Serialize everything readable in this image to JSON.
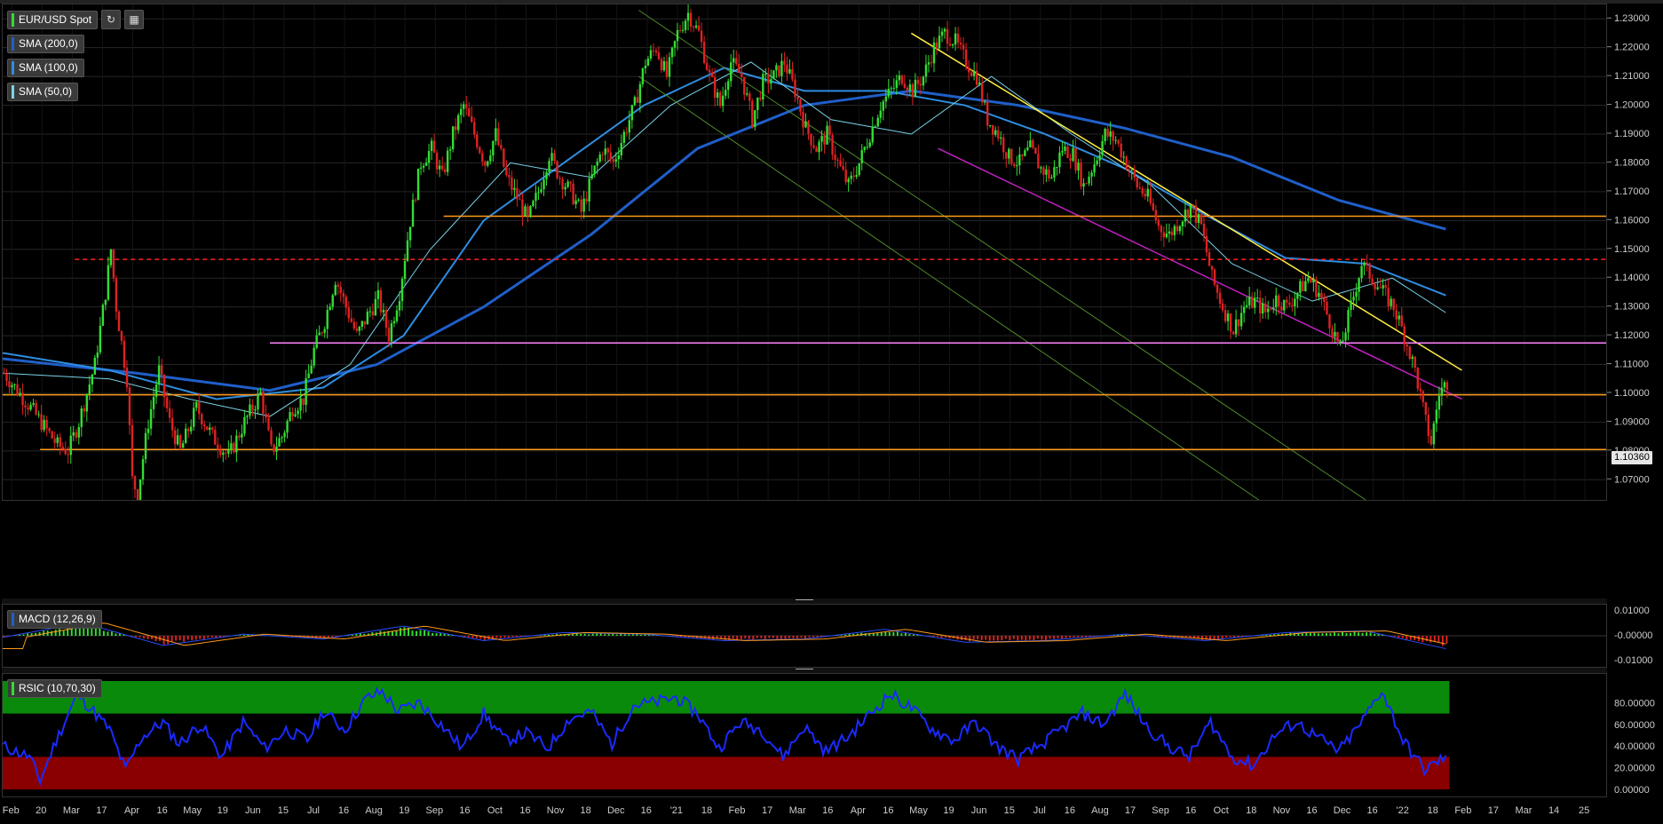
{
  "legend": {
    "symbol": "EUR/USD Spot",
    "sma200": "SMA (200,0)",
    "sma100": "SMA (100,0)",
    "sma50": "SMA (50,0)",
    "macd": "MACD (12,26,9)",
    "rsi": "RSIC (10,70,30)"
  },
  "colors": {
    "up": "#33dd33",
    "down": "#dd2222",
    "sma200": "#1f5fc9",
    "sma100": "#2e8de0",
    "sma50": "#79d3e8",
    "support_orange": "#ff9a1a",
    "resistance_red": "#ff2020",
    "support_magenta_h": "#ff80ff",
    "trend_yellow": "#ffee44",
    "trend_magenta": "#c020c0",
    "channel_green": "#4f8a2a",
    "rsi": "#1a2aff",
    "overbought_zone": "#0a8a0a",
    "oversold_zone": "#8a0000"
  },
  "current_price": "1.10360",
  "chart_data": [
    {
      "type": "candlestick",
      "name": "EUR/USD Spot",
      "y_ticks": [
        "1.23000",
        "1.22000",
        "1.21000",
        "1.20000",
        "1.19000",
        "1.18000",
        "1.17000",
        "1.16000",
        "1.15000",
        "1.14000",
        "1.13000",
        "1.12000",
        "1.11000",
        "1.10000",
        "1.09000",
        "1.08000",
        "1.07000"
      ],
      "ylim": [
        1.063,
        1.235
      ],
      "x_ticks": [
        "Feb",
        "20",
        "Mar",
        "17",
        "Apr",
        "16",
        "May",
        "19",
        "Jun",
        "15",
        "Jul",
        "16",
        "Aug",
        "19",
        "Sep",
        "16",
        "Oct",
        "16",
        "Nov",
        "18",
        "Dec",
        "16",
        "'21",
        "18",
        "Feb",
        "17",
        "Mar",
        "16",
        "Apr",
        "16",
        "May",
        "19",
        "Jun",
        "15",
        "Jul",
        "16",
        "Aug",
        "17",
        "Sep",
        "16",
        "Oct",
        "18",
        "Nov",
        "16",
        "Dec",
        "16",
        "'22",
        "18",
        "Feb",
        "17",
        "Mar",
        "14",
        "25"
      ],
      "close_path": [
        [
          0,
          1.107
        ],
        [
          10,
          1.095
        ],
        [
          20,
          1.082
        ],
        [
          24,
          1.08
        ],
        [
          28,
          1.09
        ],
        [
          34,
          1.11
        ],
        [
          38,
          1.135
        ],
        [
          40,
          1.15
        ],
        [
          42,
          1.13
        ],
        [
          46,
          1.105
        ],
        [
          48,
          1.07
        ],
        [
          50,
          1.065
        ],
        [
          54,
          1.09
        ],
        [
          58,
          1.108
        ],
        [
          62,
          1.09
        ],
        [
          66,
          1.08
        ],
        [
          72,
          1.095
        ],
        [
          78,
          1.085
        ],
        [
          84,
          1.078
        ],
        [
          90,
          1.09
        ],
        [
          96,
          1.1
        ],
        [
          100,
          1.08
        ],
        [
          104,
          1.085
        ],
        [
          108,
          1.095
        ],
        [
          112,
          1.098
        ],
        [
          116,
          1.115
        ],
        [
          120,
          1.125
        ],
        [
          124,
          1.14
        ],
        [
          128,
          1.13
        ],
        [
          132,
          1.12
        ],
        [
          136,
          1.127
        ],
        [
          140,
          1.133
        ],
        [
          144,
          1.12
        ],
        [
          148,
          1.135
        ],
        [
          152,
          1.16
        ],
        [
          156,
          1.18
        ],
        [
          160,
          1.185
        ],
        [
          164,
          1.175
        ],
        [
          168,
          1.19
        ],
        [
          172,
          1.2
        ],
        [
          176,
          1.19
        ],
        [
          180,
          1.18
        ],
        [
          184,
          1.19
        ],
        [
          188,
          1.175
        ],
        [
          192,
          1.168
        ],
        [
          196,
          1.16
        ],
        [
          200,
          1.17
        ],
        [
          204,
          1.183
        ],
        [
          208,
          1.175
        ],
        [
          212,
          1.17
        ],
        [
          216,
          1.163
        ],
        [
          220,
          1.175
        ],
        [
          224,
          1.185
        ],
        [
          228,
          1.18
        ],
        [
          232,
          1.19
        ],
        [
          236,
          1.2
        ],
        [
          240,
          1.215
        ],
        [
          244,
          1.22
        ],
        [
          248,
          1.21
        ],
        [
          252,
          1.225
        ],
        [
          256,
          1.232
        ],
        [
          260,
          1.225
        ],
        [
          264,
          1.21
        ],
        [
          268,
          1.2
        ],
        [
          272,
          1.215
        ],
        [
          276,
          1.21
        ],
        [
          280,
          1.195
        ],
        [
          284,
          1.208
        ],
        [
          288,
          1.21
        ],
        [
          292,
          1.215
        ],
        [
          296,
          1.205
        ],
        [
          300,
          1.192
        ],
        [
          304,
          1.185
        ],
        [
          308,
          1.19
        ],
        [
          312,
          1.18
        ],
        [
          316,
          1.172
        ],
        [
          320,
          1.18
        ],
        [
          324,
          1.19
        ],
        [
          328,
          1.2
        ],
        [
          332,
          1.205
        ],
        [
          336,
          1.21
        ],
        [
          340,
          1.205
        ],
        [
          344,
          1.21
        ],
        [
          348,
          1.22
        ],
        [
          352,
          1.225
        ],
        [
          356,
          1.222
        ],
        [
          360,
          1.215
        ],
        [
          364,
          1.21
        ],
        [
          368,
          1.195
        ],
        [
          372,
          1.19
        ],
        [
          376,
          1.182
        ],
        [
          380,
          1.18
        ],
        [
          384,
          1.185
        ],
        [
          388,
          1.178
        ],
        [
          392,
          1.175
        ],
        [
          396,
          1.185
        ],
        [
          400,
          1.183
        ],
        [
          404,
          1.172
        ],
        [
          408,
          1.18
        ],
        [
          412,
          1.19
        ],
        [
          416,
          1.188
        ],
        [
          420,
          1.18
        ],
        [
          424,
          1.172
        ],
        [
          428,
          1.168
        ],
        [
          432,
          1.158
        ],
        [
          436,
          1.155
        ],
        [
          440,
          1.16
        ],
        [
          444,
          1.165
        ],
        [
          448,
          1.158
        ],
        [
          452,
          1.14
        ],
        [
          456,
          1.13
        ],
        [
          460,
          1.122
        ],
        [
          464,
          1.13
        ],
        [
          468,
          1.132
        ],
        [
          472,
          1.128
        ],
        [
          476,
          1.133
        ],
        [
          480,
          1.13
        ],
        [
          484,
          1.135
        ],
        [
          488,
          1.14
        ],
        [
          492,
          1.135
        ],
        [
          496,
          1.125
        ],
        [
          500,
          1.115
        ],
        [
          504,
          1.13
        ],
        [
          508,
          1.145
        ],
        [
          512,
          1.14
        ],
        [
          516,
          1.135
        ],
        [
          520,
          1.13
        ],
        [
          524,
          1.12
        ],
        [
          528,
          1.108
        ],
        [
          532,
          1.09
        ],
        [
          534,
          1.083
        ],
        [
          537,
          1.1
        ],
        [
          540,
          1.104
        ]
      ],
      "x_domain": [
        0,
        600
      ],
      "sma50": [
        [
          0,
          1.107
        ],
        [
          40,
          1.105
        ],
        [
          70,
          1.098
        ],
        [
          100,
          1.092
        ],
        [
          130,
          1.11
        ],
        [
          160,
          1.15
        ],
        [
          190,
          1.18
        ],
        [
          220,
          1.175
        ],
        [
          250,
          1.2
        ],
        [
          280,
          1.215
        ],
        [
          310,
          1.195
        ],
        [
          340,
          1.19
        ],
        [
          370,
          1.21
        ],
        [
          400,
          1.19
        ],
        [
          430,
          1.172
        ],
        [
          460,
          1.145
        ],
        [
          490,
          1.132
        ],
        [
          520,
          1.14
        ],
        [
          540,
          1.128
        ]
      ],
      "sma100": [
        [
          0,
          1.114
        ],
        [
          40,
          1.108
        ],
        [
          80,
          1.098
        ],
        [
          120,
          1.102
        ],
        [
          150,
          1.12
        ],
        [
          180,
          1.16
        ],
        [
          210,
          1.18
        ],
        [
          240,
          1.2
        ],
        [
          270,
          1.213
        ],
        [
          300,
          1.205
        ],
        [
          330,
          1.205
        ],
        [
          360,
          1.2
        ],
        [
          390,
          1.19
        ],
        [
          420,
          1.178
        ],
        [
          450,
          1.162
        ],
        [
          480,
          1.147
        ],
        [
          510,
          1.145
        ],
        [
          540,
          1.134
        ]
      ],
      "sma200": [
        [
          0,
          1.112
        ],
        [
          50,
          1.107
        ],
        [
          100,
          1.101
        ],
        [
          140,
          1.11
        ],
        [
          180,
          1.13
        ],
        [
          220,
          1.155
        ],
        [
          260,
          1.185
        ],
        [
          300,
          1.2
        ],
        [
          340,
          1.205
        ],
        [
          380,
          1.2
        ],
        [
          420,
          1.192
        ],
        [
          460,
          1.182
        ],
        [
          500,
          1.167
        ],
        [
          540,
          1.157
        ]
      ],
      "horizontal_levels": [
        {
          "value": 1.1615,
          "from": 165,
          "color": "support_orange"
        },
        {
          "value": 1.1465,
          "from": 27,
          "color": "resistance_red",
          "dashed": true
        },
        {
          "value": 1.1175,
          "from": 100,
          "color": "support_magenta_h"
        },
        {
          "value": 1.0995,
          "from": 0,
          "color": "support_orange"
        },
        {
          "value": 1.0805,
          "from": 14,
          "color": "support_orange"
        }
      ],
      "trend_lines": [
        {
          "from": [
            340,
            1.225
          ],
          "to": [
            546,
            1.108
          ],
          "color": "trend_yellow"
        },
        {
          "from": [
            350,
            1.185
          ],
          "to": [
            546,
            1.098
          ],
          "color": "trend_magenta"
        },
        {
          "from": [
            238,
            1.233
          ],
          "to": [
            510,
            1.063
          ],
          "color": "channel_green"
        },
        {
          "from": [
            238,
            1.21
          ],
          "to": [
            470,
            1.063
          ],
          "color": "channel_green"
        }
      ]
    },
    {
      "type": "bar",
      "name": "MACD (12,26,9)",
      "y_ticks": [
        "0.01000",
        "-0.00000",
        "-0.01000"
      ],
      "ylim": [
        -0.0125,
        0.0125
      ],
      "histogram": [
        [
          0,
          -0.0005
        ],
        [
          30,
          0.004
        ],
        [
          60,
          -0.003
        ],
        [
          90,
          0.0005
        ],
        [
          120,
          -0.001
        ],
        [
          150,
          0.003
        ],
        [
          180,
          -0.0015
        ],
        [
          210,
          0.001
        ],
        [
          240,
          0.0005
        ],
        [
          270,
          -0.0015
        ],
        [
          300,
          -0.001
        ],
        [
          330,
          0.002
        ],
        [
          360,
          -0.002
        ],
        [
          390,
          -0.0015
        ],
        [
          420,
          0.0005
        ],
        [
          450,
          -0.0015
        ],
        [
          480,
          0.001
        ],
        [
          510,
          0.0015
        ],
        [
          540,
          -0.004
        ]
      ]
    },
    {
      "type": "line",
      "name": "RSIC (10,70,30)",
      "y_ticks": [
        "80.00000",
        "60.00000",
        "40.00000",
        "20.00000",
        "0.00000"
      ],
      "ylim": [
        0,
        100
      ],
      "overbought": 70,
      "oversold": 30,
      "values": [
        [
          0,
          40
        ],
        [
          10,
          30
        ],
        [
          14,
          8
        ],
        [
          20,
          45
        ],
        [
          28,
          88
        ],
        [
          34,
          72
        ],
        [
          40,
          55
        ],
        [
          46,
          18
        ],
        [
          52,
          48
        ],
        [
          60,
          62
        ],
        [
          66,
          42
        ],
        [
          74,
          60
        ],
        [
          82,
          30
        ],
        [
          90,
          62
        ],
        [
          98,
          38
        ],
        [
          106,
          55
        ],
        [
          114,
          45
        ],
        [
          120,
          72
        ],
        [
          128,
          55
        ],
        [
          136,
          84
        ],
        [
          142,
          90
        ],
        [
          148,
          72
        ],
        [
          156,
          80
        ],
        [
          164,
          60
        ],
        [
          172,
          38
        ],
        [
          180,
          70
        ],
        [
          188,
          45
        ],
        [
          196,
          52
        ],
        [
          204,
          38
        ],
        [
          212,
          65
        ],
        [
          220,
          72
        ],
        [
          228,
          42
        ],
        [
          236,
          78
        ],
        [
          244,
          80
        ],
        [
          252,
          85
        ],
        [
          260,
          70
        ],
        [
          268,
          38
        ],
        [
          276,
          62
        ],
        [
          284,
          55
        ],
        [
          292,
          30
        ],
        [
          300,
          58
        ],
        [
          308,
          35
        ],
        [
          316,
          48
        ],
        [
          324,
          68
        ],
        [
          332,
          88
        ],
        [
          340,
          75
        ],
        [
          348,
          55
        ],
        [
          356,
          45
        ],
        [
          364,
          62
        ],
        [
          372,
          40
        ],
        [
          380,
          28
        ],
        [
          388,
          40
        ],
        [
          396,
          55
        ],
        [
          404,
          70
        ],
        [
          412,
          60
        ],
        [
          420,
          88
        ],
        [
          428,
          58
        ],
        [
          436,
          40
        ],
        [
          444,
          30
        ],
        [
          452,
          62
        ],
        [
          460,
          30
        ],
        [
          468,
          22
        ],
        [
          476,
          50
        ],
        [
          484,
          62
        ],
        [
          492,
          48
        ],
        [
          500,
          35
        ],
        [
          508,
          60
        ],
        [
          516,
          92
        ],
        [
          524,
          45
        ],
        [
          532,
          18
        ],
        [
          540,
          30
        ]
      ]
    }
  ]
}
